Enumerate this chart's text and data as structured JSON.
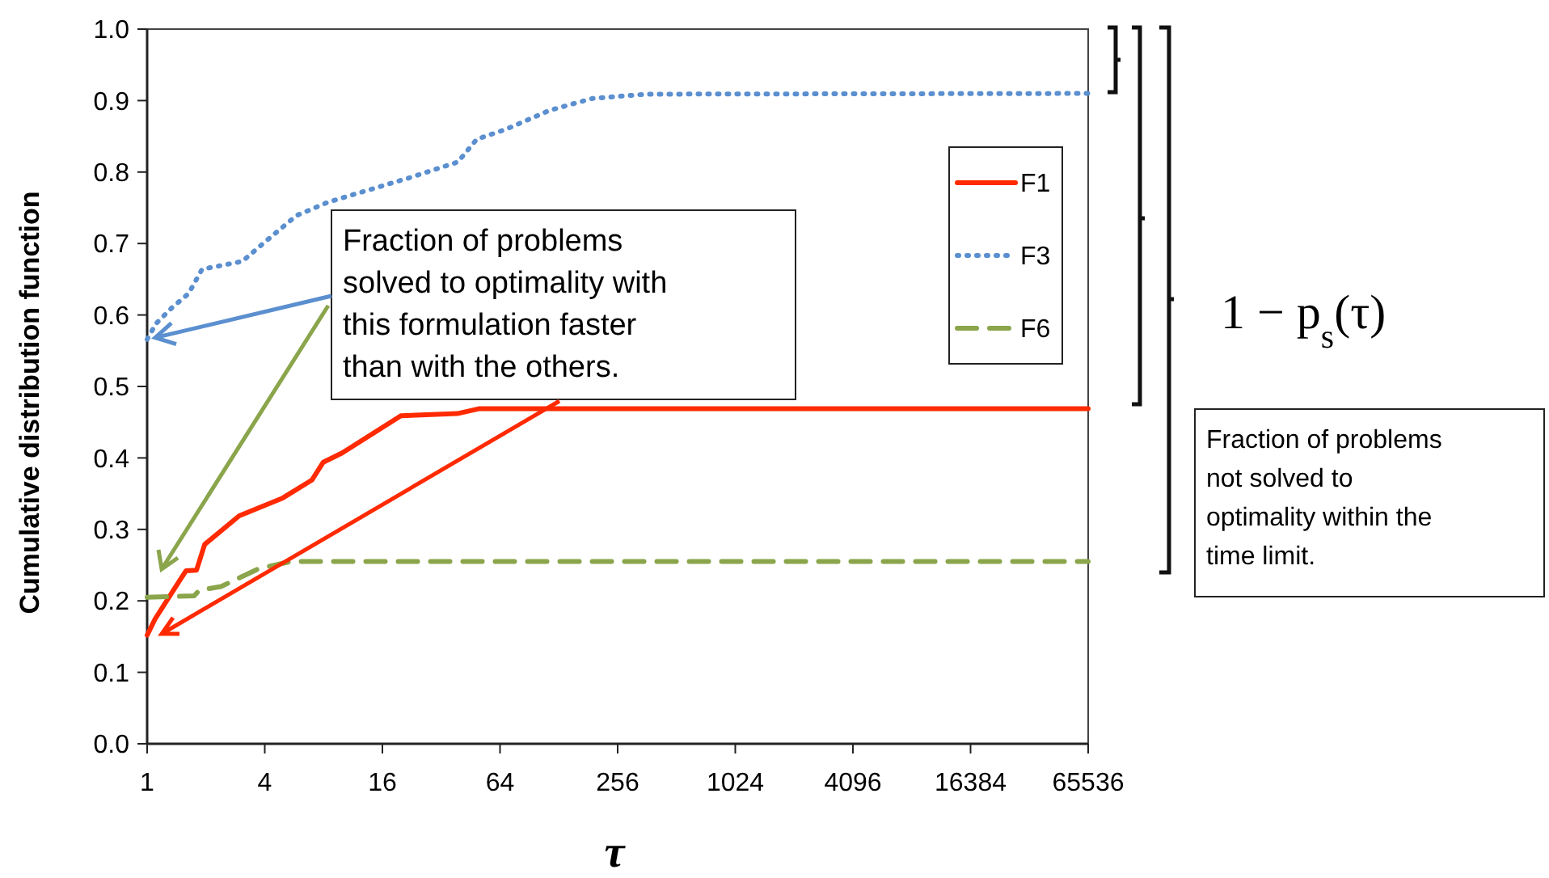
{
  "chart_data": {
    "type": "line",
    "xlabel": "τ",
    "ylabel": "Cumulative distribution function",
    "log": "x",
    "xlim": [
      1,
      65536
    ],
    "xticks": [
      1,
      4,
      16,
      64,
      256,
      1024,
      4096,
      16384,
      65536
    ],
    "ylim": [
      0,
      1
    ],
    "yticks": [
      {
        "value": 0,
        "label": "0.0"
      },
      0.1,
      0.2,
      0.3,
      0.4,
      0.5,
      0.6,
      0.7,
      0.8,
      0.9,
      {
        "value": 1,
        "label": "1.0"
      }
    ],
    "grid": false,
    "legend": "right",
    "series": [
      {
        "name": "F1",
        "color": "#ff2a00",
        "line_style": "solid",
        "x": [
          1,
          1.1,
          1.48,
          1.58,
          1.79,
          1.97,
          2.96,
          4.95,
          6.97,
          7.97,
          9.96,
          19.9,
          38.7,
          50.3,
          65536
        ],
        "values": [
          0.152,
          0.175,
          0.23,
          0.242,
          0.243,
          0.279,
          0.319,
          0.344,
          0.369,
          0.394,
          0.407,
          0.459,
          0.462,
          0.469,
          0.469
        ]
      },
      {
        "name": "F3",
        "color": "#5b8fcf",
        "line_style": "dotted",
        "x": [
          1,
          1.11,
          1.35,
          1.63,
          1.91,
          3.07,
          3.96,
          5.8,
          8.46,
          22,
          38.9,
          48.7,
          68.9,
          114,
          190,
          361,
          65536
        ],
        "values": [
          0.566,
          0.588,
          0.611,
          0.63,
          0.664,
          0.675,
          0.701,
          0.739,
          0.758,
          0.792,
          0.814,
          0.846,
          0.86,
          0.886,
          0.903,
          0.909,
          0.91
        ]
      },
      {
        "name": "F6",
        "color": "#8aa54b",
        "line_style": "dashed",
        "x": [
          1,
          1.74,
          1.85,
          2.39,
          3.72,
          5.44,
          65536
        ],
        "values": [
          0.205,
          0.207,
          0.215,
          0.22,
          0.245,
          0.255,
          0.255
        ]
      }
    ],
    "annotations": [
      {
        "text": "Fraction of problems solved to optimality with this formulation faster than with the others.",
        "x": 1,
        "y": 0.566
      },
      "1 − p$_{s}$(τ)",
      "Fraction of problems not solved to optimality within the time limit."
    ]
  }
}
